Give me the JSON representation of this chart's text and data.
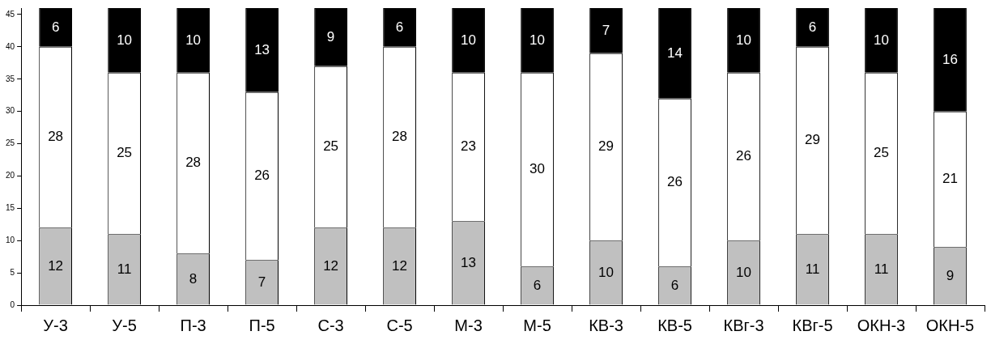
{
  "chart_data": {
    "type": "bar",
    "stacked": true,
    "data_labels": true,
    "grid": false,
    "legend": false,
    "categories": [
      "У-3",
      "У-5",
      "П-3",
      "П-5",
      "С-3",
      "С-5",
      "М-3",
      "М-5",
      "КВ-3",
      "КВ-5",
      "КВг-3",
      "КВг-5",
      "ОКН-3",
      "ОКН-5"
    ],
    "ylim": [
      0,
      46
    ],
    "yticks": [
      0,
      5,
      10,
      15,
      20,
      25,
      30,
      35,
      40,
      45
    ],
    "series": [
      {
        "color": "#c0c0c0",
        "values": [
          12,
          11,
          8,
          7,
          12,
          12,
          13,
          6,
          10,
          6,
          10,
          11,
          11,
          9
        ]
      },
      {
        "color": "#ffffff",
        "values": [
          28,
          25,
          28,
          26,
          25,
          28,
          23,
          30,
          29,
          26,
          26,
          29,
          25,
          21
        ]
      },
      {
        "color": "#000000",
        "values": [
          6,
          10,
          10,
          13,
          9,
          6,
          10,
          10,
          7,
          14,
          10,
          6,
          10,
          16
        ]
      }
    ]
  }
}
